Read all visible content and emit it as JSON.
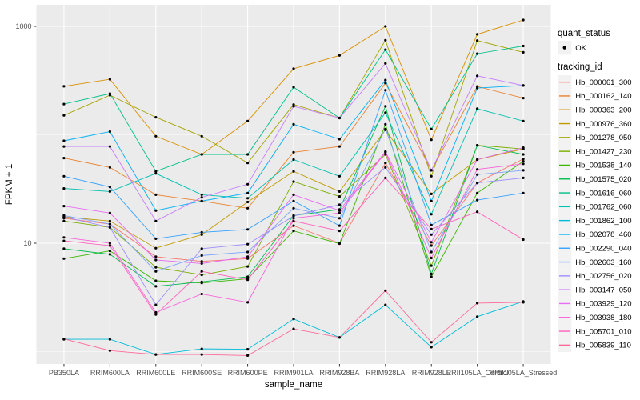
{
  "figure": {
    "background": "#FFFFFF",
    "panel_background": "#EBEBEB",
    "grid_color": "#FFFFFF",
    "tick_color": "#333333",
    "tick_label_color": "#4D4D4D",
    "title_color": "#000000",
    "point_color": "#000000",
    "legend_key_background": "#F2F2F2"
  },
  "chart_data": {
    "type": "line",
    "title": "",
    "xlabel": "sample_name",
    "ylabel": "FPKM + 1",
    "y_scale": "log10",
    "y_major_ticks": [
      {
        "value": 1000,
        "label": "1000"
      },
      {
        "value": 10,
        "label": "10"
      }
    ],
    "y_minor_ticks": [
      100,
      1
    ],
    "ylim_log10": [
      -0.114,
      3.199
    ],
    "grid": true,
    "legend_position": "right",
    "categories": [
      "PB350LA",
      "RRIM600LA",
      "RRIM600LE",
      "RRIM600SE",
      "RRIM600PE",
      "RRIM901LA",
      "RRIM928BA",
      "RRIM928LA",
      "RRIM928LE",
      "RRII105LA_Control",
      "RRII105LA_Stressed"
    ],
    "series": [
      {
        "tracking_id": "Hb_000061_300",
        "color": "#F8766D",
        "values": [
          17,
          15,
          7.5,
          6.8,
          7.2,
          14.5,
          10,
          55,
          9.5,
          36,
          60
        ]
      },
      {
        "tracking_id": "Hb_000162_140",
        "color": "#EA8331",
        "values": [
          61,
          50,
          28,
          24.5,
          21,
          69,
          78,
          300,
          47,
          279,
          218
        ]
      },
      {
        "tracking_id": "Hb_000363_200",
        "color": "#D89000",
        "values": [
          280,
          325,
          97,
          66,
          134,
          407,
          540,
          1000,
          90,
          845,
          1145
        ]
      },
      {
        "tracking_id": "Hb_000976_360",
        "color": "#C09B00",
        "values": [
          17.5,
          16,
          9,
          12,
          24,
          46,
          30,
          111,
          28.5,
          59,
          74
        ]
      },
      {
        "tracking_id": "Hb_001278_050",
        "color": "#A3A500",
        "values": [
          151,
          232,
          145,
          97,
          55,
          190,
          143,
          745,
          41.5,
          740,
          577
        ]
      },
      {
        "tracking_id": "Hb_001427_230",
        "color": "#7CAE00",
        "values": [
          16,
          14,
          6,
          5.1,
          6.1,
          37,
          27,
          66,
          6.2,
          80,
          74
        ]
      },
      {
        "tracking_id": "Hb_001538_140",
        "color": "#39B600",
        "values": [
          7.2,
          8.5,
          4.5,
          4.3,
          4.7,
          13,
          9.9,
          125,
          4.9,
          29,
          57
        ]
      },
      {
        "tracking_id": "Hb_001575_020",
        "color": "#00BB4E",
        "values": [
          8.9,
          7.9,
          4.0,
          4.4,
          4.9,
          18,
          20.5,
          183,
          5.2,
          80,
          66
        ]
      },
      {
        "tracking_id": "Hb_001616_060",
        "color": "#00C087",
        "values": [
          192,
          240,
          46,
          66,
          66,
          275,
          143,
          610,
          113,
          560,
          660
        ]
      },
      {
        "tracking_id": "Hb_001762_060",
        "color": "#00C0AF",
        "values": [
          32,
          30,
          44,
          28,
          26,
          59,
          41.5,
          160,
          18.5,
          174,
          134
        ]
      },
      {
        "tracking_id": "Hb_001862_100",
        "color": "#00BCD8",
        "values": [
          1.3,
          1.3,
          0.94,
          1.06,
          1.05,
          2.0,
          1.35,
          2.7,
          1.1,
          2.1,
          2.9
        ]
      },
      {
        "tracking_id": "Hb_002078_460",
        "color": "#00B0F6",
        "values": [
          88,
          107,
          20,
          24.5,
          29,
          125,
          91,
          320,
          24.5,
          270,
          285
        ]
      },
      {
        "tracking_id": "Hb_002290_040",
        "color": "#35A2FF",
        "values": [
          41.5,
          33,
          11,
          12.6,
          13.4,
          24.5,
          14.5,
          258,
          14.7,
          25,
          29
        ]
      },
      {
        "tracking_id": "Hb_002603_160",
        "color": "#7FA5FF",
        "values": [
          18,
          15,
          5.5,
          7.7,
          8.3,
          21,
          17,
          113,
          8.3,
          43,
          47
        ]
      },
      {
        "tracking_id": "Hb_002756_020",
        "color": "#9C8DFF",
        "values": [
          17.5,
          14,
          2.7,
          8.9,
          9.8,
          17.8,
          22.7,
          50,
          12,
          36,
          40
        ]
      },
      {
        "tracking_id": "Hb_003147_050",
        "color": "#C77CFF",
        "values": [
          78,
          78,
          16,
          26.5,
          35,
          183,
          143,
          455,
          47,
          350,
          285
        ]
      },
      {
        "tracking_id": "Hb_003929_120",
        "color": "#E76BF3",
        "values": [
          22,
          19,
          7,
          6.5,
          7.5,
          28,
          20,
          70,
          10.2,
          59,
          76
        ]
      },
      {
        "tracking_id": "Hb_003938_180",
        "color": "#FA62DB",
        "values": [
          11.3,
          10,
          2.3,
          3.4,
          2.85,
          17,
          19,
          69,
          7.3,
          48,
          54
        ]
      },
      {
        "tracking_id": "Hb_005701_010",
        "color": "#FF62BC",
        "values": [
          10.5,
          9.5,
          2.2,
          5.5,
          4.6,
          16,
          13,
          40,
          13.5,
          19.5,
          10.8
        ]
      },
      {
        "tracking_id": "Hb_005839_110",
        "color": "#FF6A98",
        "values": [
          1.31,
          1.02,
          0.94,
          0.94,
          0.92,
          1.62,
          1.35,
          3.65,
          1.22,
          2.8,
          2.85
        ]
      }
    ]
  },
  "legend": {
    "quant_status_title": "quant_status",
    "quant_status_items": [
      {
        "label": "OK",
        "symbol": "point"
      }
    ],
    "tracking_id_title": "tracking_id"
  }
}
